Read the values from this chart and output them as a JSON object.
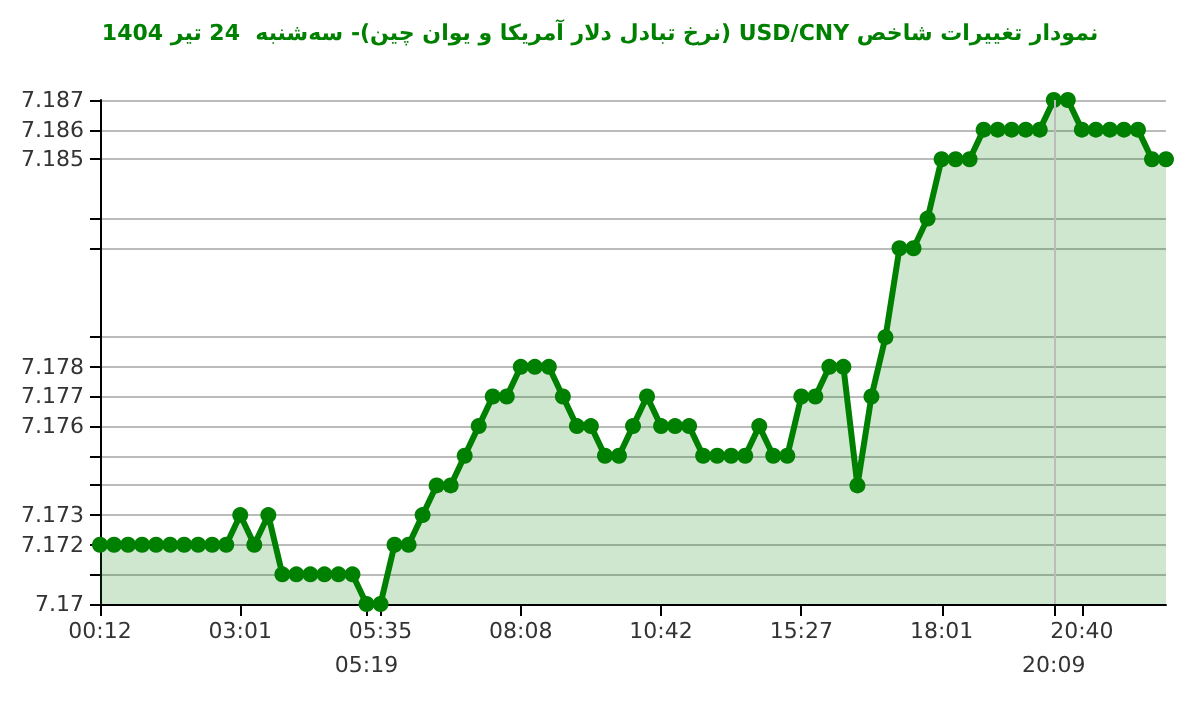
{
  "chart_data": {
    "type": "area",
    "title": "نمودار تغییرات شاخص USD/CNY (نرخ تبادل دلار آمریکا و یوان چین)- سه‌شنبه  24 تیر 1404",
    "categories": [
      "00:12",
      null,
      null,
      null,
      null,
      null,
      null,
      null,
      null,
      null,
      "03:01",
      null,
      null,
      null,
      null,
      null,
      null,
      null,
      null,
      "05:19",
      "05:35",
      null,
      null,
      null,
      null,
      null,
      null,
      null,
      null,
      null,
      "08:08",
      null,
      null,
      null,
      null,
      null,
      null,
      null,
      null,
      null,
      "10:42",
      null,
      null,
      null,
      null,
      null,
      null,
      null,
      null,
      null,
      "15:27",
      null,
      null,
      null,
      null,
      null,
      null,
      null,
      null,
      null,
      "18:01",
      null,
      null,
      null,
      null,
      null,
      null,
      null,
      "20:09",
      null,
      "20:40",
      null,
      null,
      null,
      null,
      null,
      null
    ],
    "series": [
      {
        "color": "#008000",
        "values": [
          7.172,
          7.172,
          7.172,
          7.172,
          7.172,
          7.172,
          7.172,
          7.172,
          7.172,
          7.172,
          7.173,
          7.172,
          7.173,
          7.171,
          7.171,
          7.171,
          7.171,
          7.171,
          7.171,
          7.17,
          7.17,
          7.172,
          7.172,
          7.173,
          7.174,
          7.174,
          7.175,
          7.176,
          7.177,
          7.177,
          7.178,
          7.178,
          7.178,
          7.177,
          7.176,
          7.176,
          7.175,
          7.175,
          7.176,
          7.177,
          7.176,
          7.176,
          7.176,
          7.175,
          7.175,
          7.175,
          7.175,
          7.176,
          7.175,
          7.175,
          7.177,
          7.177,
          7.178,
          7.178,
          7.174,
          7.177,
          7.179,
          7.182,
          7.182,
          7.183,
          7.185,
          7.185,
          7.185,
          7.186,
          7.186,
          7.186,
          7.186,
          7.186,
          7.187,
          7.187,
          7.186,
          7.186,
          7.186,
          7.186,
          7.186,
          7.185,
          7.185
        ]
      }
    ],
    "ylim": [
      7.17,
      7.187
    ],
    "yticks": [
      7.17,
      {
        "value": 7.171,
        "label": null
      },
      7.172,
      7.173,
      {
        "value": 7.174,
        "label": null
      },
      {
        "value": 7.175,
        "label": null
      },
      7.176,
      7.177,
      7.178,
      {
        "value": 7.179,
        "label": null
      },
      {
        "value": 7.182,
        "label": null
      },
      {
        "value": 7.183,
        "label": null
      },
      7.185,
      7.186,
      7.187
    ],
    "ref_lines": [
      {
        "axis": "x",
        "value": "20:09",
        "label": null,
        "color": "#bbbbbb"
      }
    ],
    "grid": "y",
    "marker": "circle",
    "line_style": "solid"
  }
}
